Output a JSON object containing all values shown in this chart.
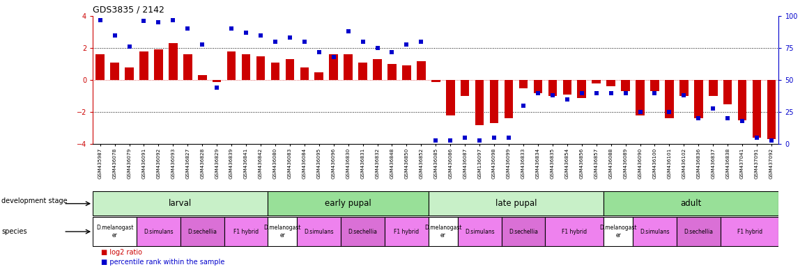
{
  "title": "GDS3835 / 2142",
  "samples": [
    "GSM435987",
    "GSM436078",
    "GSM436079",
    "GSM436091",
    "GSM436092",
    "GSM436093",
    "GSM436827",
    "GSM436828",
    "GSM436829",
    "GSM436839",
    "GSM436841",
    "GSM436842",
    "GSM436080",
    "GSM436083",
    "GSM436084",
    "GSM436095",
    "GSM436096",
    "GSM436830",
    "GSM436831",
    "GSM436832",
    "GSM436848",
    "GSM436850",
    "GSM436852",
    "GSM436085",
    "GSM436086",
    "GSM436087",
    "GSM136097",
    "GSM436098",
    "GSM436099",
    "GSM436833",
    "GSM436834",
    "GSM436835",
    "GSM436854",
    "GSM436856",
    "GSM436857",
    "GSM436088",
    "GSM436089",
    "GSM436090",
    "GSM436100",
    "GSM436101",
    "GSM436102",
    "GSM436836",
    "GSM436837",
    "GSM436838",
    "GSM437041",
    "GSM437091",
    "GSM437092"
  ],
  "log2_ratio": [
    1.6,
    1.1,
    0.8,
    1.8,
    1.9,
    2.3,
    1.6,
    0.3,
    -0.1,
    1.8,
    1.6,
    1.5,
    1.1,
    1.3,
    0.8,
    0.5,
    1.6,
    1.6,
    1.1,
    1.3,
    1.0,
    0.9,
    1.2,
    -0.1,
    -2.2,
    -1.0,
    -2.8,
    -2.7,
    -2.4,
    -0.5,
    -0.8,
    -1.0,
    -0.9,
    -1.1,
    -0.2,
    -0.4,
    -0.7,
    -2.2,
    -0.7,
    -2.4,
    -1.0,
    -2.4,
    -1.0,
    -1.5,
    -2.5,
    -3.6,
    -3.7
  ],
  "percentile": [
    97,
    85,
    76,
    96,
    95,
    97,
    90,
    78,
    44,
    90,
    87,
    85,
    80,
    83,
    80,
    72,
    68,
    88,
    80,
    75,
    72,
    78,
    80,
    3,
    3,
    5,
    3,
    5,
    5,
    30,
    40,
    38,
    35,
    40,
    40,
    40,
    40,
    25,
    40,
    25,
    38,
    20,
    28,
    20,
    18,
    5,
    3
  ],
  "dev_stages": [
    {
      "label": "larval",
      "start": 0,
      "end": 12,
      "color": "#c8f0c8"
    },
    {
      "label": "early pupal",
      "start": 12,
      "end": 23,
      "color": "#98e098"
    },
    {
      "label": "late pupal",
      "start": 23,
      "end": 35,
      "color": "#c8f0c8"
    },
    {
      "label": "adult",
      "start": 35,
      "end": 47,
      "color": "#98e098"
    }
  ],
  "species_groups": [
    {
      "label": "D.melanogast\ner",
      "start": 0,
      "end": 3,
      "color": "#ffffff"
    },
    {
      "label": "D.simulans",
      "start": 3,
      "end": 6,
      "color": "#ee82ee"
    },
    {
      "label": "D.sechellia",
      "start": 6,
      "end": 9,
      "color": "#da70d6"
    },
    {
      "label": "F1 hybrid",
      "start": 9,
      "end": 12,
      "color": "#ee82ee"
    },
    {
      "label": "D.melanogast\ner",
      "start": 12,
      "end": 14,
      "color": "#ffffff"
    },
    {
      "label": "D.simulans",
      "start": 14,
      "end": 17,
      "color": "#ee82ee"
    },
    {
      "label": "D.sechellia",
      "start": 17,
      "end": 20,
      "color": "#da70d6"
    },
    {
      "label": "F1 hybrid",
      "start": 20,
      "end": 23,
      "color": "#ee82ee"
    },
    {
      "label": "D.melanogast\ner",
      "start": 23,
      "end": 25,
      "color": "#ffffff"
    },
    {
      "label": "D.simulans",
      "start": 25,
      "end": 28,
      "color": "#ee82ee"
    },
    {
      "label": "D.sechellia",
      "start": 28,
      "end": 31,
      "color": "#da70d6"
    },
    {
      "label": "F1 hybrid",
      "start": 31,
      "end": 35,
      "color": "#ee82ee"
    },
    {
      "label": "D.melanogast\ner",
      "start": 35,
      "end": 37,
      "color": "#ffffff"
    },
    {
      "label": "D.simulans",
      "start": 37,
      "end": 40,
      "color": "#ee82ee"
    },
    {
      "label": "D.sechellia",
      "start": 40,
      "end": 43,
      "color": "#da70d6"
    },
    {
      "label": "F1 hybrid",
      "start": 43,
      "end": 47,
      "color": "#ee82ee"
    }
  ],
  "bar_color": "#cc0000",
  "dot_color": "#0000cc",
  "ylim_left": [
    -4,
    4
  ],
  "ylim_right": [
    0,
    100
  ],
  "yticks_left": [
    -4,
    -2,
    0,
    2,
    4
  ],
  "yticks_right": [
    0,
    25,
    50,
    75,
    100
  ],
  "hlines": [
    -2,
    2
  ],
  "legend_red": "log2 ratio",
  "legend_blue": "percentile rank within the sample",
  "bar_width": 0.6,
  "dot_size": 18
}
